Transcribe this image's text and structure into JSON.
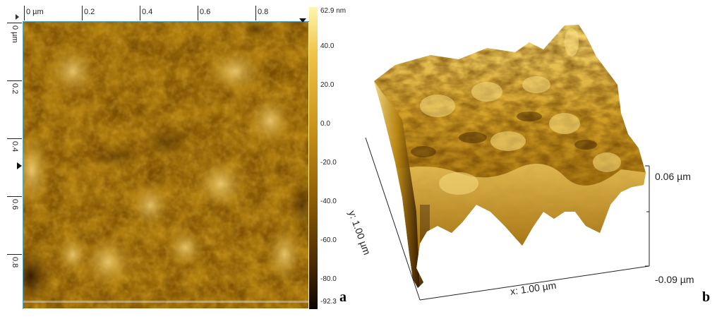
{
  "panel_a": {
    "label": "a",
    "x_ticks": [
      "0 µm",
      "0.2",
      "0.4",
      "0.6",
      "0.8"
    ],
    "y_ticks": [
      "0 µm",
      "0.2",
      "0.4",
      "0.6",
      "0.8"
    ],
    "colorbar_ticks": [
      "62.9 nm",
      "40.0",
      "20.0",
      "0.0",
      "-20.0",
      "-40.0",
      "-60.0",
      "-80.0",
      "-92.3"
    ],
    "colorbar_values": [
      62.9,
      40.0,
      20.0,
      0.0,
      -20.0,
      -40.0,
      -60.0,
      -80.0,
      -92.3
    ],
    "colors": {
      "low": "#1a0b00",
      "mid": "#b07d0c",
      "high": "#fff6b0"
    }
  },
  "panel_b": {
    "label": "b",
    "x_axis_label": "x: 1.00 µm",
    "y_axis_label": "y: 1.00 µm",
    "z_top_label": "0.06 µm",
    "z_bottom_label": "-0.09 µm"
  }
}
